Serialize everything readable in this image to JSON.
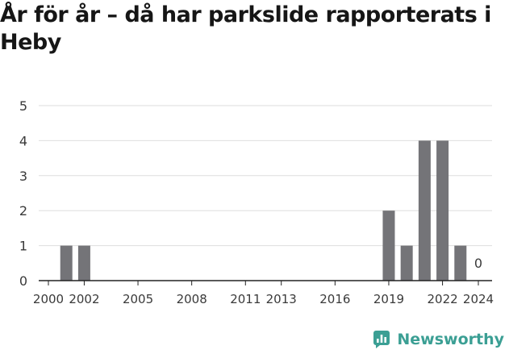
{
  "title": "År för år – då har parkslide rapporterats i Heby",
  "brand": {
    "name": "Newsworthy",
    "color": "#3b9f94",
    "icon": "newsworthy-logo-icon"
  },
  "chart_data": {
    "type": "bar",
    "title": "År för år – då har parkslide rapporterats i Heby",
    "xlabel": "",
    "ylabel": "",
    "categories": [
      2000,
      2001,
      2002,
      2003,
      2004,
      2005,
      2006,
      2007,
      2008,
      2009,
      2010,
      2011,
      2012,
      2013,
      2014,
      2015,
      2016,
      2017,
      2018,
      2019,
      2020,
      2021,
      2022,
      2023,
      2024
    ],
    "values": [
      0,
      1,
      1,
      0,
      0,
      0,
      0,
      0,
      0,
      0,
      0,
      0,
      0,
      0,
      0,
      0,
      0,
      0,
      0,
      2,
      1,
      4,
      4,
      1,
      0
    ],
    "x_tick_labels": [
      "2000",
      "2002",
      "2005",
      "2008",
      "2011",
      "2013",
      "2016",
      "2019",
      "2022",
      "2024"
    ],
    "ylim": [
      0,
      5
    ],
    "y_ticks": [
      0,
      1,
      2,
      3,
      4,
      5
    ],
    "annotations": [
      {
        "x": 2024,
        "text": "0"
      }
    ],
    "bar_color": "#747478",
    "grid": true,
    "legend": "none"
  }
}
